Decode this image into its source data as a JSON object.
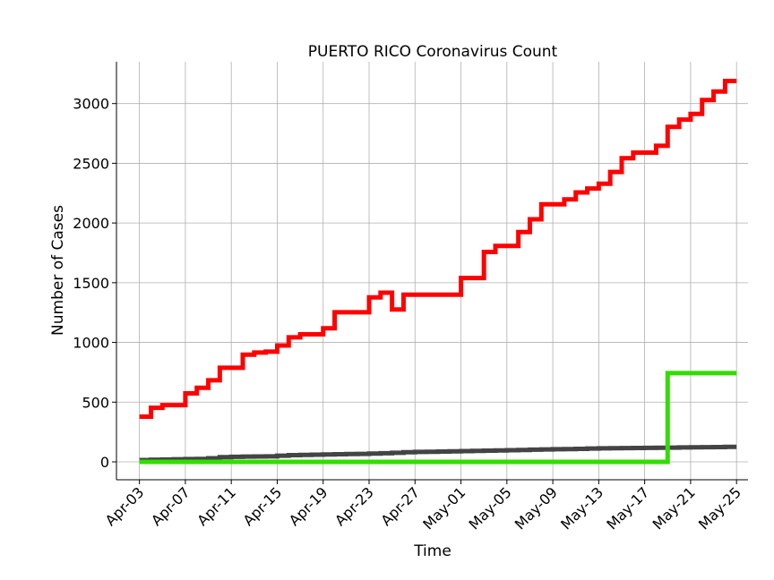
{
  "chart_data": {
    "type": "line",
    "title": "PUERTO RICO Coronavirus Count",
    "xlabel": "Time",
    "ylabel": "Number of Cases",
    "grid": true,
    "legend": "none",
    "step": true,
    "xlim": [
      "2020-04-01",
      "2020-05-26"
    ],
    "ylim": [
      -150,
      3350
    ],
    "x_ticks": [
      "Apr-03",
      "Apr-07",
      "Apr-11",
      "Apr-15",
      "Apr-19",
      "Apr-23",
      "Apr-27",
      "May-01",
      "May-05",
      "May-09",
      "May-13",
      "May-17",
      "May-21",
      "May-25"
    ],
    "y_ticks": [
      "0",
      "500",
      "1000",
      "1500",
      "2000",
      "2500",
      "3000"
    ],
    "x": [
      "2020-04-03",
      "2020-04-04",
      "2020-04-05",
      "2020-04-06",
      "2020-04-07",
      "2020-04-08",
      "2020-04-09",
      "2020-04-10",
      "2020-04-11",
      "2020-04-12",
      "2020-04-13",
      "2020-04-14",
      "2020-04-15",
      "2020-04-16",
      "2020-04-17",
      "2020-04-18",
      "2020-04-19",
      "2020-04-20",
      "2020-04-21",
      "2020-04-22",
      "2020-04-23",
      "2020-04-24",
      "2020-04-25",
      "2020-04-26",
      "2020-04-27",
      "2020-04-28",
      "2020-04-29",
      "2020-04-30",
      "2020-05-01",
      "2020-05-02",
      "2020-05-03",
      "2020-05-04",
      "2020-05-05",
      "2020-05-06",
      "2020-05-07",
      "2020-05-08",
      "2020-05-09",
      "2020-05-10",
      "2020-05-11",
      "2020-05-12",
      "2020-05-13",
      "2020-05-14",
      "2020-05-15",
      "2020-05-16",
      "2020-05-17",
      "2020-05-18",
      "2020-05-19",
      "2020-05-20",
      "2020-05-21",
      "2020-05-22",
      "2020-05-23",
      "2020-05-24",
      "2020-05-25"
    ],
    "series": [
      {
        "color": "#ff0000",
        "values": [
          378,
          452,
          475,
          475,
          573,
          620,
          683,
          788,
          788,
          897,
          915,
          923,
          974,
          1043,
          1068,
          1068,
          1118,
          1252,
          1252,
          1252,
          1377,
          1416,
          1276,
          1400,
          1400,
          1400,
          1400,
          1400,
          1539,
          1539,
          1757,
          1808,
          1808,
          1924,
          2031,
          2156,
          2156,
          2198,
          2256,
          2289,
          2329,
          2427,
          2542,
          2589,
          2589,
          2646,
          2805,
          2866,
          2913,
          3030,
          3101,
          3189,
          3189
        ]
      },
      {
        "color": "#444444",
        "values": [
          15,
          18,
          20,
          21,
          23,
          24,
          30,
          39,
          42,
          44,
          45,
          46,
          51,
          56,
          58,
          60,
          62,
          64,
          65,
          66,
          69,
          72,
          76,
          80,
          83,
          84,
          86,
          88,
          90,
          92,
          94,
          95,
          97,
          99,
          102,
          104,
          106,
          107,
          109,
          111,
          113,
          114,
          115,
          116,
          117,
          118,
          119,
          121,
          122,
          123,
          124,
          125,
          125
        ]
      },
      {
        "color": "#33dd00",
        "values": [
          0,
          0,
          0,
          0,
          0,
          0,
          0,
          0,
          0,
          0,
          0,
          0,
          0,
          0,
          0,
          0,
          0,
          0,
          0,
          0,
          0,
          0,
          0,
          0,
          0,
          0,
          0,
          0,
          0,
          0,
          0,
          0,
          0,
          0,
          0,
          0,
          0,
          0,
          0,
          0,
          0,
          0,
          0,
          0,
          0,
          0,
          743,
          743,
          743,
          743,
          743,
          743,
          743
        ]
      }
    ]
  }
}
